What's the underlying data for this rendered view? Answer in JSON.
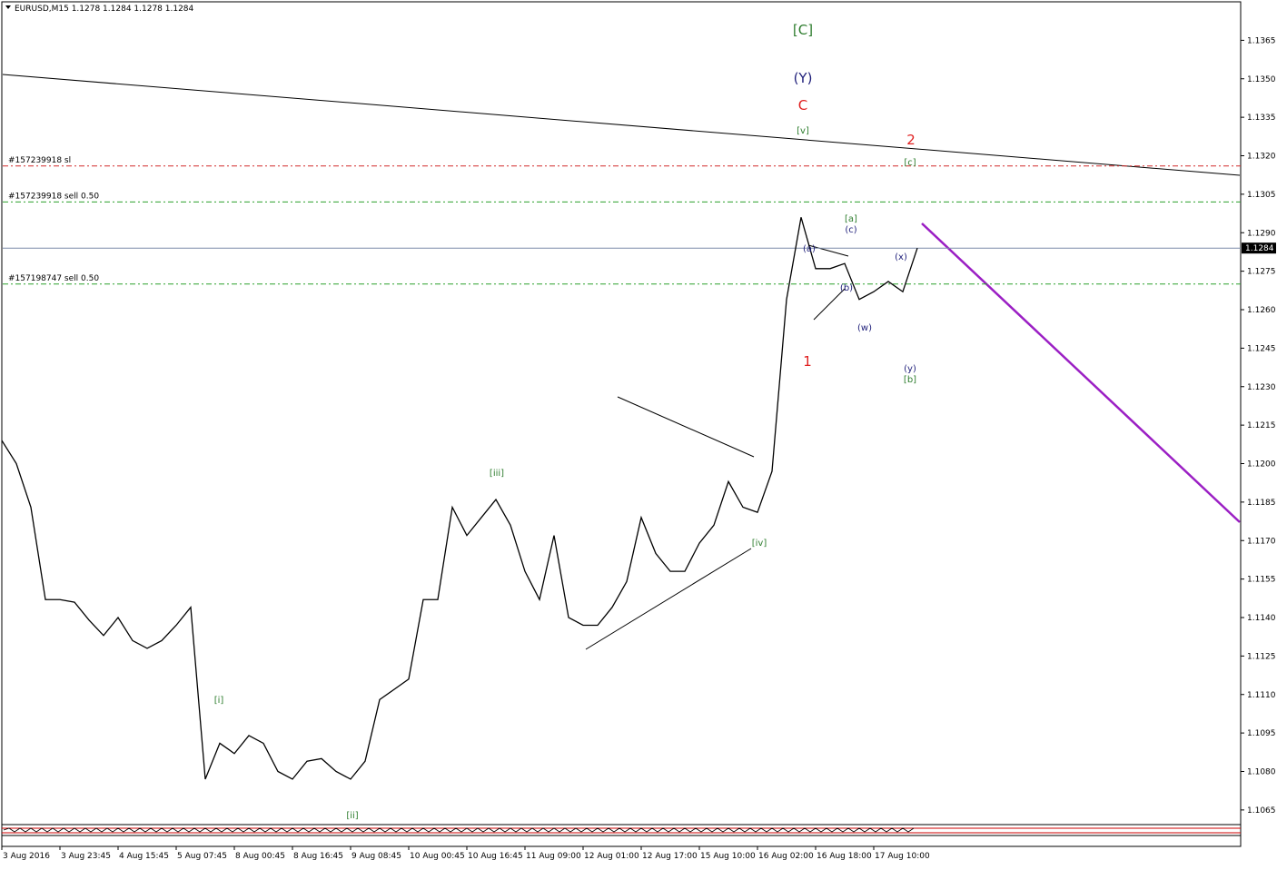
{
  "chart_data": {
    "type": "line",
    "title": "EURUSD,M15  1.1278 1.1284 1.1278 1.1284",
    "color": "#000000",
    "categories": [
      "3 Aug 2016",
      null,
      null,
      null,
      "3 Aug 23:45",
      null,
      null,
      null,
      "4 Aug 15:45",
      null,
      null,
      null,
      "5 Aug 07:45",
      null,
      null,
      null,
      "8 Aug 00:45",
      null,
      null,
      null,
      "8 Aug 16:45",
      null,
      null,
      null,
      "9 Aug 08:45",
      null,
      null,
      null,
      "10 Aug 00:45",
      null,
      null,
      null,
      "10 Aug 16:45",
      null,
      null,
      null,
      "11 Aug 09:00",
      null,
      null,
      null,
      "12 Aug 01:00",
      null,
      null,
      null,
      "12 Aug 17:00",
      null,
      null,
      null,
      "15 Aug 10:00",
      null,
      null,
      null,
      "16 Aug 02:00",
      null,
      null,
      null,
      "16 Aug 18:00",
      null,
      null,
      null,
      "17 Aug 10:00",
      null,
      null,
      null
    ],
    "values": [
      1.1209,
      1.12,
      1.1183,
      1.1147,
      1.1147,
      1.1146,
      1.1139,
      1.1133,
      1.114,
      1.1131,
      1.1128,
      1.1131,
      1.1137,
      1.1144,
      1.1077,
      1.1091,
      1.1087,
      1.1094,
      1.1091,
      1.108,
      1.1077,
      1.1084,
      1.1085,
      1.108,
      1.1077,
      1.1084,
      1.1108,
      1.1112,
      1.1116,
      1.1147,
      1.1147,
      1.1183,
      1.1172,
      1.1179,
      1.1186,
      1.1176,
      1.1158,
      1.1147,
      1.1172,
      1.114,
      1.1137,
      1.1137,
      1.1144,
      1.1154,
      1.1179,
      1.1165,
      1.1158,
      1.1158,
      1.1169,
      1.1176,
      1.1193,
      1.1183,
      1.1181,
      1.1197,
      1.1264,
      1.1296,
      1.1276,
      1.1276,
      1.1278,
      1.1264,
      1.1267,
      1.1271,
      1.1267,
      1.1284
    ],
    "ylim": [
      1.106,
      1.138
    ],
    "yticks": [
      {
        "value": 1.1365,
        "label": "1.1365"
      },
      {
        "value": 1.135,
        "label": "1.1350"
      },
      {
        "value": 1.1335,
        "label": "1.1335"
      },
      {
        "value": 1.132,
        "label": "1.1320"
      },
      {
        "value": 1.1305,
        "label": "1.1305"
      },
      {
        "value": 1.129,
        "label": "1.1290"
      },
      {
        "value": 1.1275,
        "label": "1.1275"
      },
      {
        "value": 1.126,
        "label": "1.1260"
      },
      {
        "value": 1.1245,
        "label": "1.1245"
      },
      {
        "value": 1.123,
        "label": "1.1230"
      },
      {
        "value": 1.1215,
        "label": "1.1215"
      },
      {
        "value": 1.12,
        "label": "1.1200"
      },
      {
        "value": 1.1185,
        "label": "1.1185"
      },
      {
        "value": 1.117,
        "label": "1.1170"
      },
      {
        "value": 1.1155,
        "label": "1.1155"
      },
      {
        "value": 1.114,
        "label": "1.1140"
      },
      {
        "value": 1.1125,
        "label": "1.1125"
      },
      {
        "value": 1.111,
        "label": "1.1110"
      },
      {
        "value": 1.1095,
        "label": "1.1095"
      },
      {
        "value": 1.108,
        "label": "1.1080"
      },
      {
        "value": 1.1065,
        "label": "1.1065"
      }
    ],
    "price_label": {
      "value": 1.1284,
      "label": "1.1284"
    },
    "levels": [
      {
        "label": "#157239918 sl",
        "value": 1.1316,
        "color": "#d22c2c"
      },
      {
        "label": "#157239918 sell 0.50",
        "value": 1.1302,
        "color": "#2ca02c"
      },
      {
        "label": "#157198747 sell 0.50",
        "value": 1.127,
        "color": "#2ca02c"
      }
    ],
    "annotations": [
      {
        "text": "[C]",
        "color": "#2e7d2e"
      },
      {
        "text": "(Y)",
        "color": "#1f1f7a"
      },
      {
        "text": "C",
        "color": "#e02020"
      },
      {
        "text": "[v]",
        "color": "#2e7d2e"
      },
      {
        "text": "2",
        "color": "#e02020"
      },
      {
        "text": "[c]",
        "color": "#2e7d2e"
      },
      {
        "text": "[a]",
        "color": "#2e7d2e"
      },
      {
        "text": "(c)",
        "color": "#1f1f7a"
      },
      {
        "text": "(a)",
        "color": "#1f1f7a"
      },
      {
        "text": "(x)",
        "color": "#1f1f7a"
      },
      {
        "text": "(b)",
        "color": "#1f1f7a"
      },
      {
        "text": "(w)",
        "color": "#1f1f7a"
      },
      {
        "text": "1",
        "color": "#e02020"
      },
      {
        "text": "(y)",
        "color": "#1f1f7a"
      },
      {
        "text": "[b]",
        "color": "#2e7d2e"
      },
      {
        "text": "[iii]",
        "color": "#2e7d2e"
      },
      {
        "text": "[iv]",
        "color": "#2e7d2e"
      },
      {
        "text": "[i]",
        "color": "#2e7d2e"
      },
      {
        "text": "[ii]",
        "color": "#2e7d2e"
      }
    ]
  }
}
